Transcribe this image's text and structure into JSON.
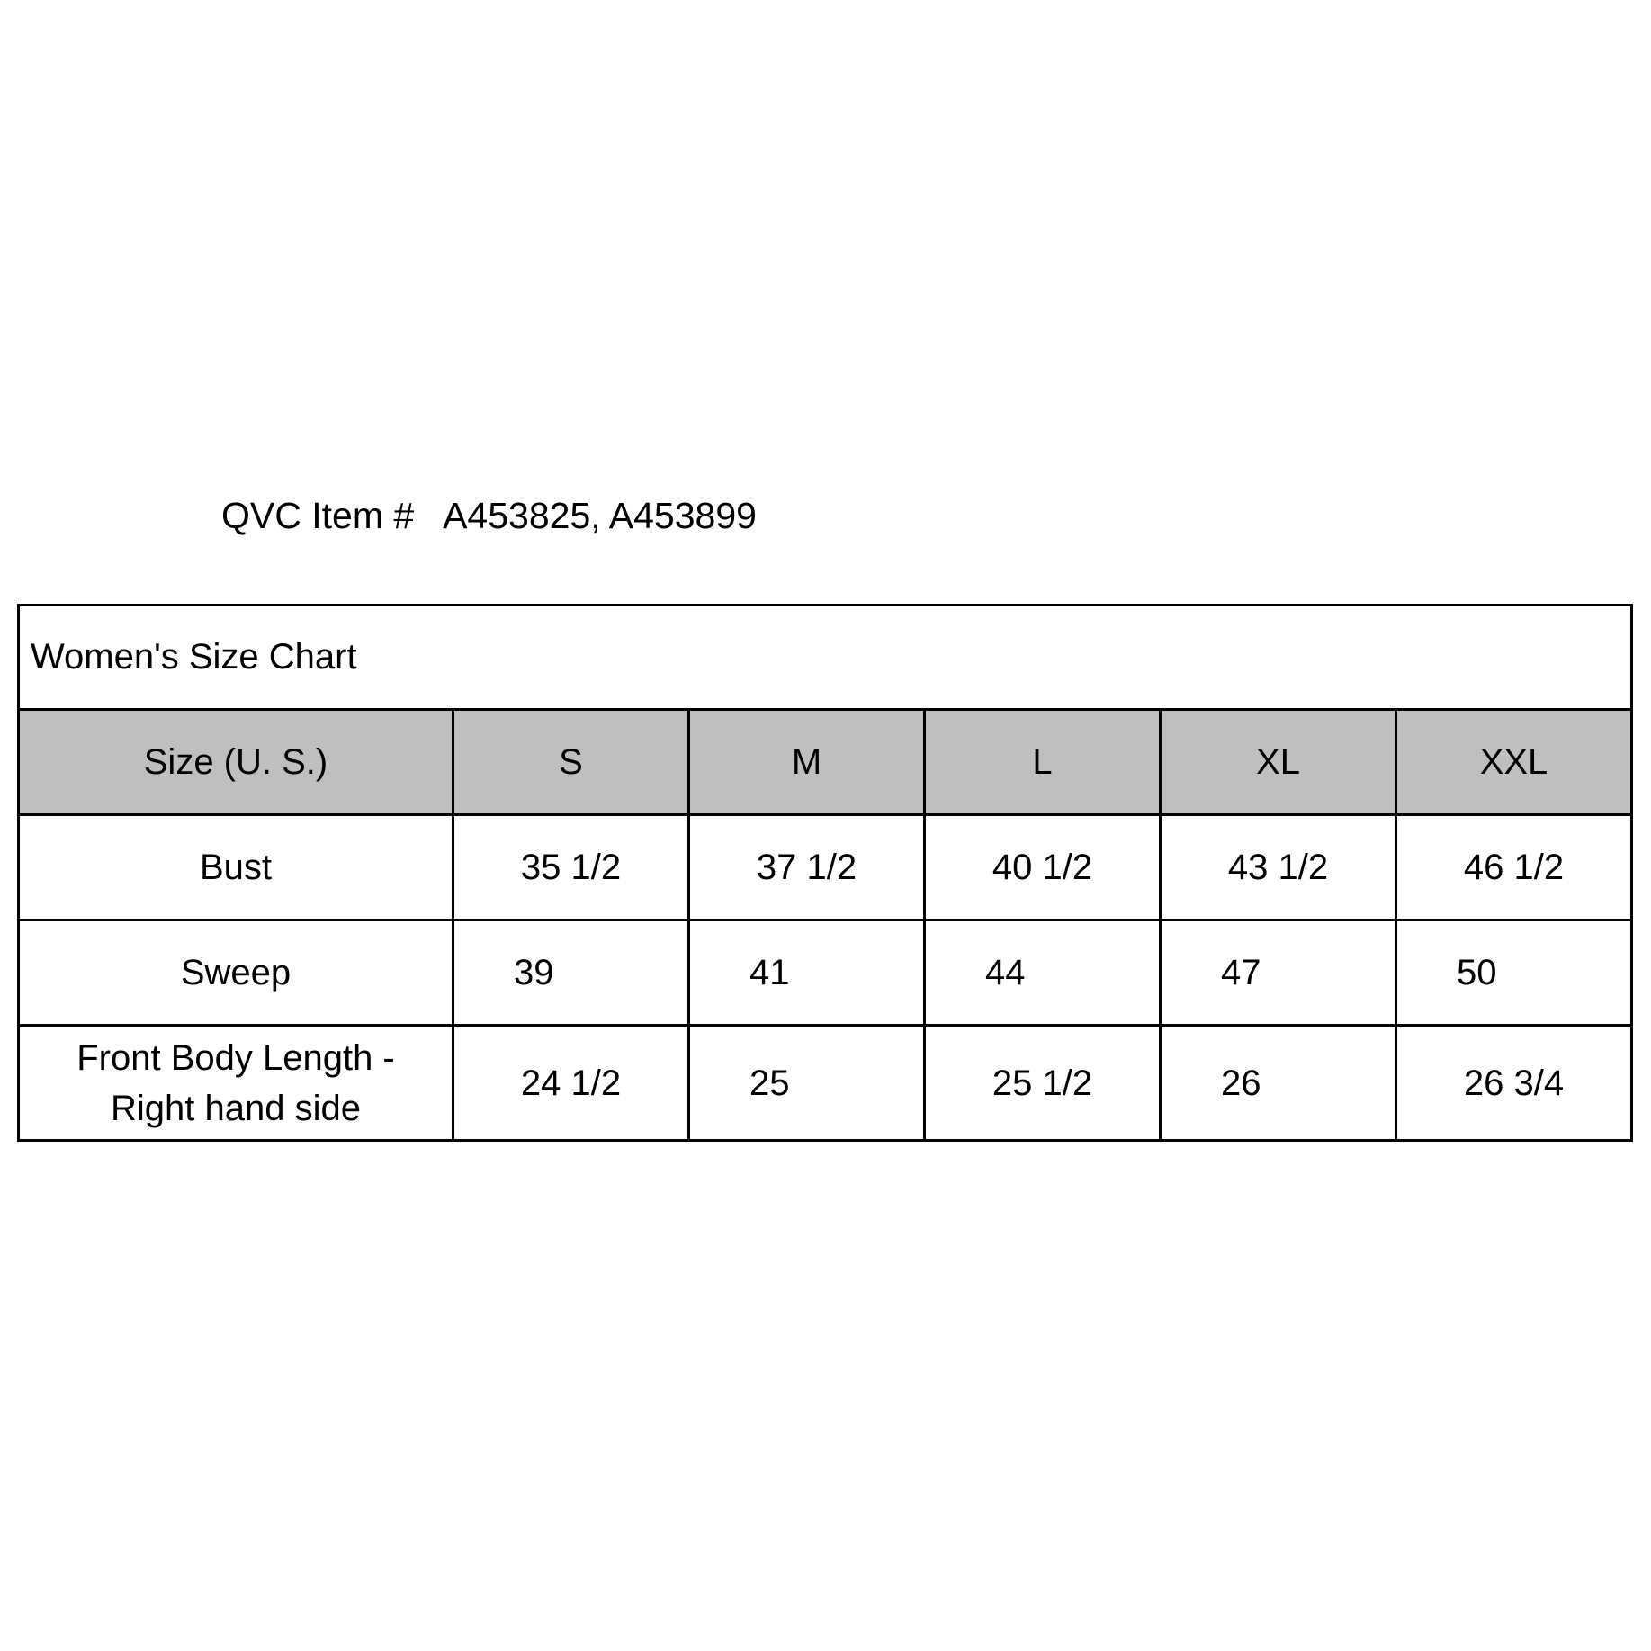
{
  "item_line": "QVC Item #   A453825, A453899",
  "table": {
    "title": "Women's Size Chart",
    "header": [
      "Size (U. S.)",
      "S",
      "M",
      "L",
      "XL",
      "XXL"
    ],
    "header_bg": "#bfbfbf",
    "rows": [
      {
        "label": "Bust",
        "values": [
          "35 1/2",
          "37 1/2",
          "40 1/2",
          "43 1/2",
          "46 1/2"
        ]
      },
      {
        "label": "Sweep",
        "values": [
          "39",
          "41",
          "44",
          "47",
          "50"
        ]
      },
      {
        "label_line1": "Front Body Length -",
        "label_line2": "Right hand side",
        "values": [
          "24 1/2",
          "25",
          "25 1/2",
          "26",
          "26 3/4"
        ]
      }
    ]
  }
}
